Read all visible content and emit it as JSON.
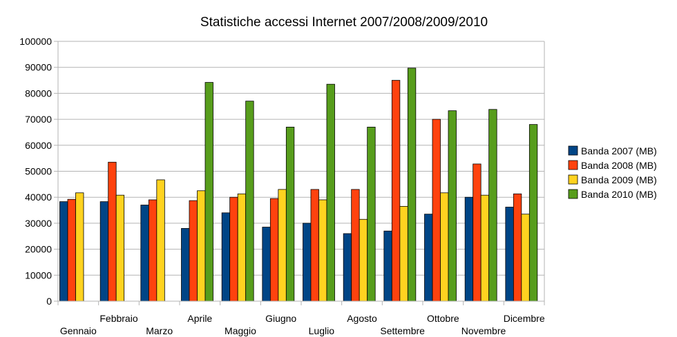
{
  "chart_data": {
    "type": "bar",
    "title": "Statistiche accessi Internet 2007/2008/2009/2010",
    "xlabel": "",
    "ylabel": "",
    "ylim": [
      0,
      100000
    ],
    "yticks": [
      0,
      10000,
      20000,
      30000,
      40000,
      50000,
      60000,
      70000,
      80000,
      90000,
      100000
    ],
    "categories": [
      "Gennaio",
      "Febbraio",
      "Marzo",
      "Aprile",
      "Maggio",
      "Giugno",
      "Luglio",
      "Agosto",
      "Settembre",
      "Ottobre",
      "Novembre",
      "Dicembre"
    ],
    "series": [
      {
        "name": "Banda 2007 (MB)",
        "color": "#004586",
        "values": [
          38300,
          38300,
          37000,
          28000,
          34000,
          28500,
          30000,
          26000,
          27000,
          33500,
          40000,
          36200
        ]
      },
      {
        "name": "Banda 2008 (MB)",
        "color": "#ff420e",
        "values": [
          39200,
          53500,
          39000,
          38700,
          40000,
          39500,
          43000,
          43000,
          85000,
          70000,
          52800,
          41300
        ]
      },
      {
        "name": "Banda 2009 (MB)",
        "color": "#ffd320",
        "values": [
          41700,
          40800,
          46700,
          42500,
          41300,
          43000,
          39000,
          31500,
          36500,
          41700,
          40800,
          33500
        ]
      },
      {
        "name": "Banda 2010 (MB)",
        "color": "#579d1c",
        "values": [
          null,
          null,
          null,
          84200,
          77000,
          67000,
          83500,
          67000,
          89700,
          73300,
          73800,
          68000
        ]
      }
    ],
    "grid": true,
    "legend_position": "right"
  }
}
